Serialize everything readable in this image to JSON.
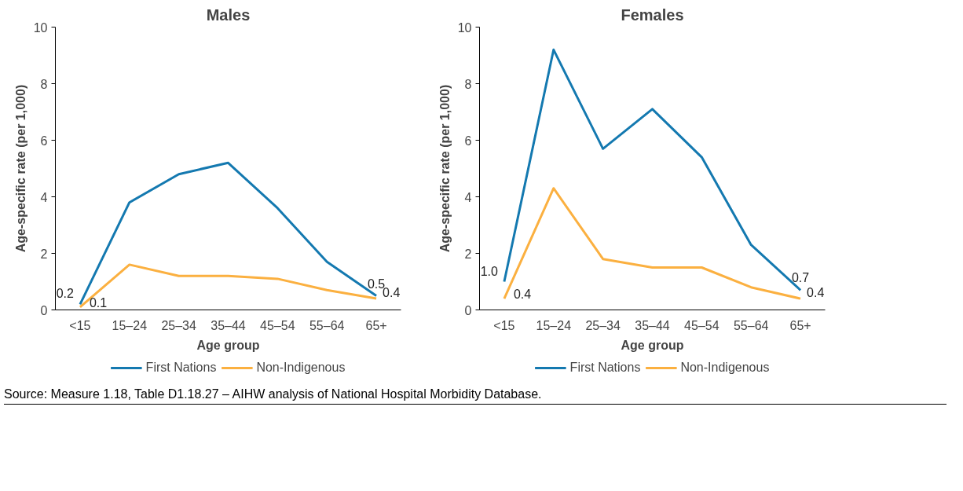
{
  "chart_data": [
    {
      "type": "line",
      "title": "Males",
      "xlabel": "Age group",
      "ylabel": "Age-specific rate (per 1,000)",
      "categories": [
        "<15",
        "15–24",
        "25–34",
        "35–44",
        "45–54",
        "55–64",
        "65+"
      ],
      "ylim": [
        0,
        10
      ],
      "yticks": [
        0,
        2,
        4,
        6,
        8,
        10
      ],
      "grid": false,
      "legend": "bottom",
      "marker": "none",
      "line_style": "solid",
      "series": [
        {
          "name": "First Nations",
          "color": "#1479b0",
          "values": [
            0.2,
            3.8,
            4.8,
            5.2,
            3.6,
            1.7,
            0.5
          ],
          "value_labels": [
            "0.2",
            null,
            null,
            null,
            null,
            null,
            "0.5"
          ]
        },
        {
          "name": "Non-Indigenous",
          "color": "#fbb040",
          "values": [
            0.1,
            1.6,
            1.2,
            1.2,
            1.1,
            0.7,
            0.4
          ],
          "value_labels": [
            "0.1",
            null,
            null,
            null,
            null,
            null,
            "0.4"
          ]
        }
      ],
      "annotations": [
        "Source: Measure 1.18, Table D1.18.27 – AIHW analysis of National Hospital Morbidity Database."
      ]
    },
    {
      "type": "line",
      "title": "Females",
      "xlabel": "Age group",
      "ylabel": "Age-specific rate (per 1,000)",
      "categories": [
        "<15",
        "15–24",
        "25–34",
        "35–44",
        "45–54",
        "55–64",
        "65+"
      ],
      "ylim": [
        0,
        10
      ],
      "yticks": [
        0,
        2,
        4,
        6,
        8,
        10
      ],
      "grid": false,
      "legend": "bottom",
      "marker": "none",
      "line_style": "solid",
      "series": [
        {
          "name": "First Nations",
          "color": "#1479b0",
          "values": [
            1.0,
            9.2,
            5.7,
            7.1,
            5.4,
            2.3,
            0.7
          ],
          "value_labels": [
            "1.0",
            null,
            null,
            null,
            null,
            null,
            "0.7"
          ]
        },
        {
          "name": "Non-Indigenous",
          "color": "#fbb040",
          "values": [
            0.4,
            4.3,
            1.8,
            1.5,
            1.5,
            0.8,
            0.4
          ],
          "value_labels": [
            "0.4",
            null,
            null,
            null,
            null,
            null,
            "0.4"
          ]
        }
      ]
    }
  ]
}
